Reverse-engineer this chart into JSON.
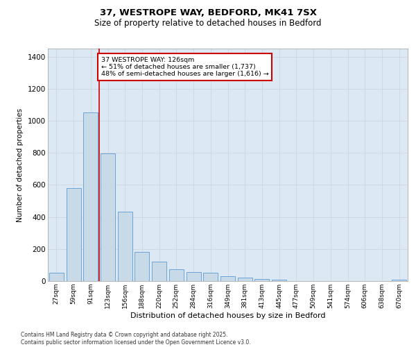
{
  "title_line1": "37, WESTROPE WAY, BEDFORD, MK41 7SX",
  "title_line2": "Size of property relative to detached houses in Bedford",
  "xlabel": "Distribution of detached houses by size in Bedford",
  "ylabel": "Number of detached properties",
  "categories": [
    "27sqm",
    "59sqm",
    "91sqm",
    "123sqm",
    "156sqm",
    "188sqm",
    "220sqm",
    "252sqm",
    "284sqm",
    "316sqm",
    "349sqm",
    "381sqm",
    "413sqm",
    "445sqm",
    "477sqm",
    "509sqm",
    "541sqm",
    "574sqm",
    "606sqm",
    "638sqm",
    "670sqm"
  ],
  "values": [
    50,
    580,
    1050,
    795,
    435,
    180,
    120,
    75,
    55,
    50,
    30,
    22,
    15,
    7,
    2,
    0,
    0,
    0,
    0,
    0,
    10
  ],
  "bar_color": "#c8d9e8",
  "bar_edge_color": "#5b9bd5",
  "grid_color": "#d0d8e0",
  "background_color": "#dce9f5",
  "vline_x_index": 3,
  "vline_color": "#cc0000",
  "annotation_box_text": "37 WESTROPE WAY: 126sqm\n← 51% of detached houses are smaller (1,737)\n48% of semi-detached houses are larger (1,616) →",
  "ylim": [
    0,
    1450
  ],
  "yticks": [
    0,
    200,
    400,
    600,
    800,
    1000,
    1200,
    1400
  ],
  "footer_line1": "Contains HM Land Registry data © Crown copyright and database right 2025.",
  "footer_line2": "Contains public sector information licensed under the Open Government Licence v3.0."
}
